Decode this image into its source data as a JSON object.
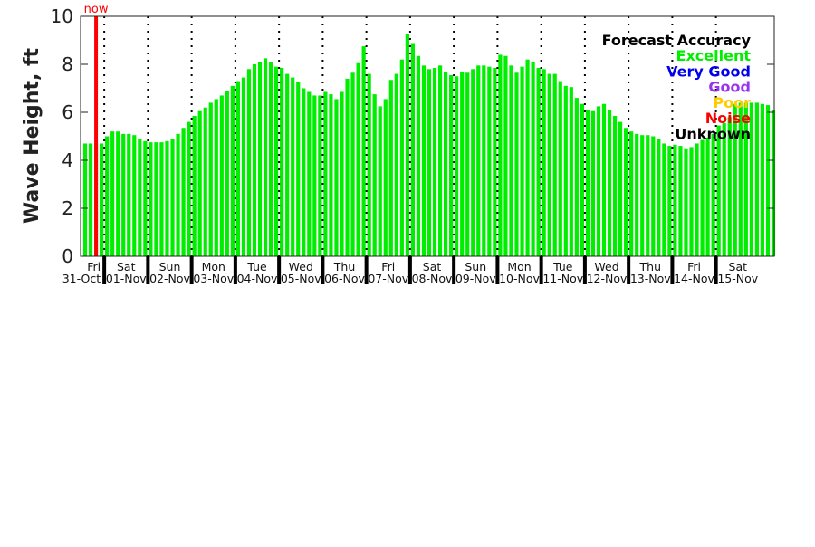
{
  "chart_data": {
    "type": "bar",
    "ylabel": "Wave Height, ft",
    "ylim": [
      0,
      10
    ],
    "yticks": [
      "0",
      "2",
      "4",
      "6",
      "8",
      "10"
    ],
    "interval_hours": 3,
    "bar_color": "#00ee00",
    "now_label": "now",
    "now_color": "#ff0000",
    "now_index": 2,
    "days": [
      {
        "day": "Fri",
        "date": "31-Oct"
      },
      {
        "day": "Sat",
        "date": "01-Nov"
      },
      {
        "day": "Sun",
        "date": "02-Nov"
      },
      {
        "day": "Mon",
        "date": "03-Nov"
      },
      {
        "day": "Tue",
        "date": "04-Nov"
      },
      {
        "day": "Wed",
        "date": "05-Nov"
      },
      {
        "day": "Thu",
        "date": "06-Nov"
      },
      {
        "day": "Fri",
        "date": "07-Nov"
      },
      {
        "day": "Sat",
        "date": "08-Nov"
      },
      {
        "day": "Sun",
        "date": "09-Nov"
      },
      {
        "day": "Mon",
        "date": "10-Nov"
      },
      {
        "day": "Tue",
        "date": "11-Nov"
      },
      {
        "day": "Wed",
        "date": "12-Nov"
      },
      {
        "day": "Thu",
        "date": "13-Nov"
      },
      {
        "day": "Fri",
        "date": "14-Nov"
      },
      {
        "day": "Sat",
        "date": "15-Nov"
      }
    ],
    "values": [
      4.7,
      4.7,
      4.7,
      4.7,
      5.0,
      5.2,
      5.2,
      5.1,
      5.1,
      5.05,
      4.9,
      4.8,
      4.75,
      4.75,
      4.75,
      4.8,
      4.9,
      5.1,
      5.35,
      5.6,
      5.85,
      6.05,
      6.2,
      6.4,
      6.55,
      6.7,
      6.9,
      7.1,
      7.3,
      7.45,
      7.8,
      8.0,
      8.1,
      8.25,
      8.1,
      7.9,
      7.85,
      7.6,
      7.45,
      7.25,
      7.0,
      6.85,
      6.7,
      6.7,
      6.85,
      6.75,
      6.55,
      6.85,
      7.4,
      7.65,
      8.05,
      8.75,
      7.6,
      6.75,
      6.25,
      6.55,
      7.35,
      7.6,
      8.2,
      9.25,
      8.85,
      8.35,
      7.95,
      7.8,
      7.85,
      7.95,
      7.7,
      7.55,
      7.5,
      7.7,
      7.65,
      7.8,
      7.95,
      7.95,
      7.9,
      7.85,
      8.4,
      8.35,
      7.95,
      7.65,
      7.9,
      8.2,
      8.1,
      7.85,
      7.8,
      7.6,
      7.6,
      7.3,
      7.1,
      7.05,
      6.6,
      6.35,
      6.1,
      6.05,
      6.25,
      6.35,
      6.1,
      5.85,
      5.6,
      5.35,
      5.2,
      5.1,
      5.05,
      5.05,
      5.0,
      4.9,
      4.7,
      4.6,
      4.65,
      4.6,
      4.5,
      4.55,
      4.7,
      4.85,
      4.95,
      5.1,
      5.45,
      5.55,
      5.8,
      6.35,
      6.4,
      6.4,
      6.4,
      6.4,
      6.35,
      6.3,
      6.1
    ],
    "legend": {
      "title": "Forecast Accuracy",
      "placement": "top-right",
      "entries": [
        {
          "label": "Excellent",
          "color": "#00ee00"
        },
        {
          "label": "Very Good",
          "color": "#0000ee"
        },
        {
          "label": "Good",
          "color": "#9933ee"
        },
        {
          "label": "Poor",
          "color": "#ffcc00"
        },
        {
          "label": "Noise",
          "color": "#ff0000"
        },
        {
          "label": "Unknown",
          "color": "#000000"
        }
      ]
    }
  }
}
